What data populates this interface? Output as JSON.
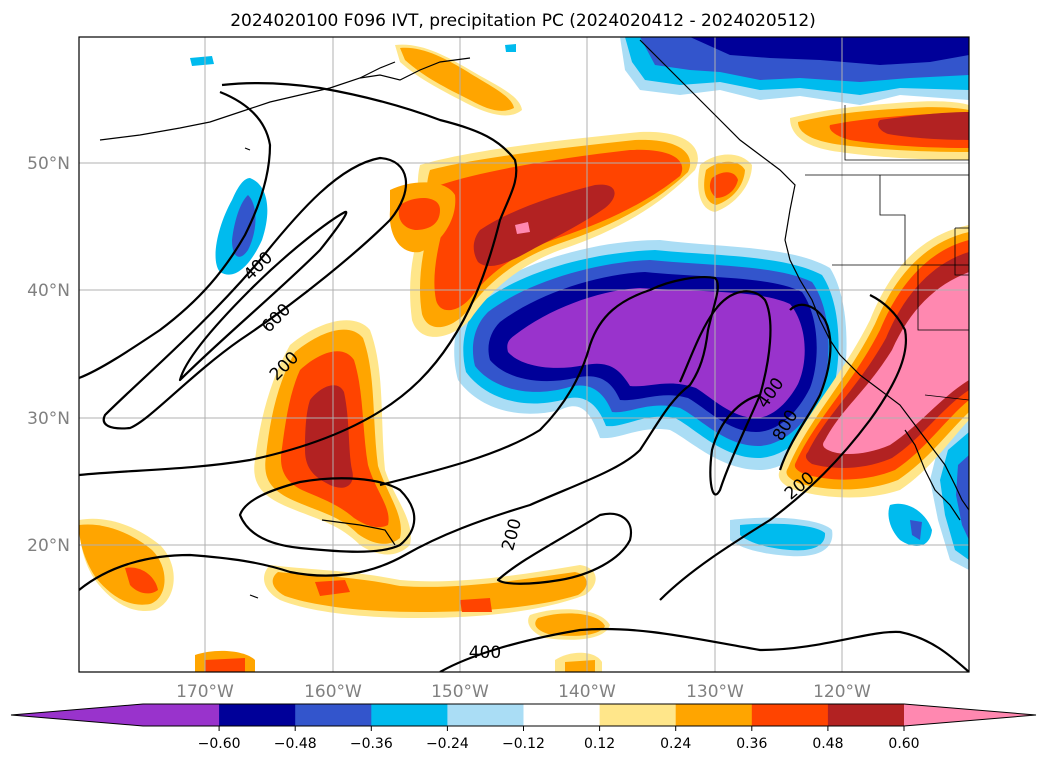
{
  "title": "2024020100 F096 IVT, precipitation PC (2024020412 - 2024020512)",
  "map": {
    "lat_labels": [
      "50°N",
      "40°N",
      "30°N",
      "20°N"
    ],
    "lon_labels": [
      "170°W",
      "160°W",
      "150°W",
      "140°W",
      "130°W",
      "120°W"
    ],
    "contour_labels": [
      "400",
      "600",
      "200",
      "400",
      "800",
      "200",
      "200",
      "400"
    ]
  },
  "colorbar": {
    "colors": [
      "#9933cc",
      "#000099",
      "#3355cc",
      "#00bbee",
      "#aaddf5",
      "#ffffff",
      "#ffe68a",
      "#ffa500",
      "#ff4400",
      "#b22222",
      "#ff88b0",
      "#ff88b0"
    ],
    "ticks": [
      "−0.60",
      "−0.48",
      "−0.36",
      "−0.24",
      "−0.12",
      "0.12",
      "0.24",
      "0.36",
      "0.48",
      "0.60"
    ]
  },
  "palette": {
    "purple": "#9933cc",
    "navy": "#000099",
    "blue": "#3355cc",
    "cyan": "#00bbee",
    "lightblue": "#aaddf5",
    "yellow": "#ffe68a",
    "orange": "#ffa500",
    "redorange": "#ff4400",
    "darkred": "#b22222",
    "pink": "#ff88b0"
  }
}
